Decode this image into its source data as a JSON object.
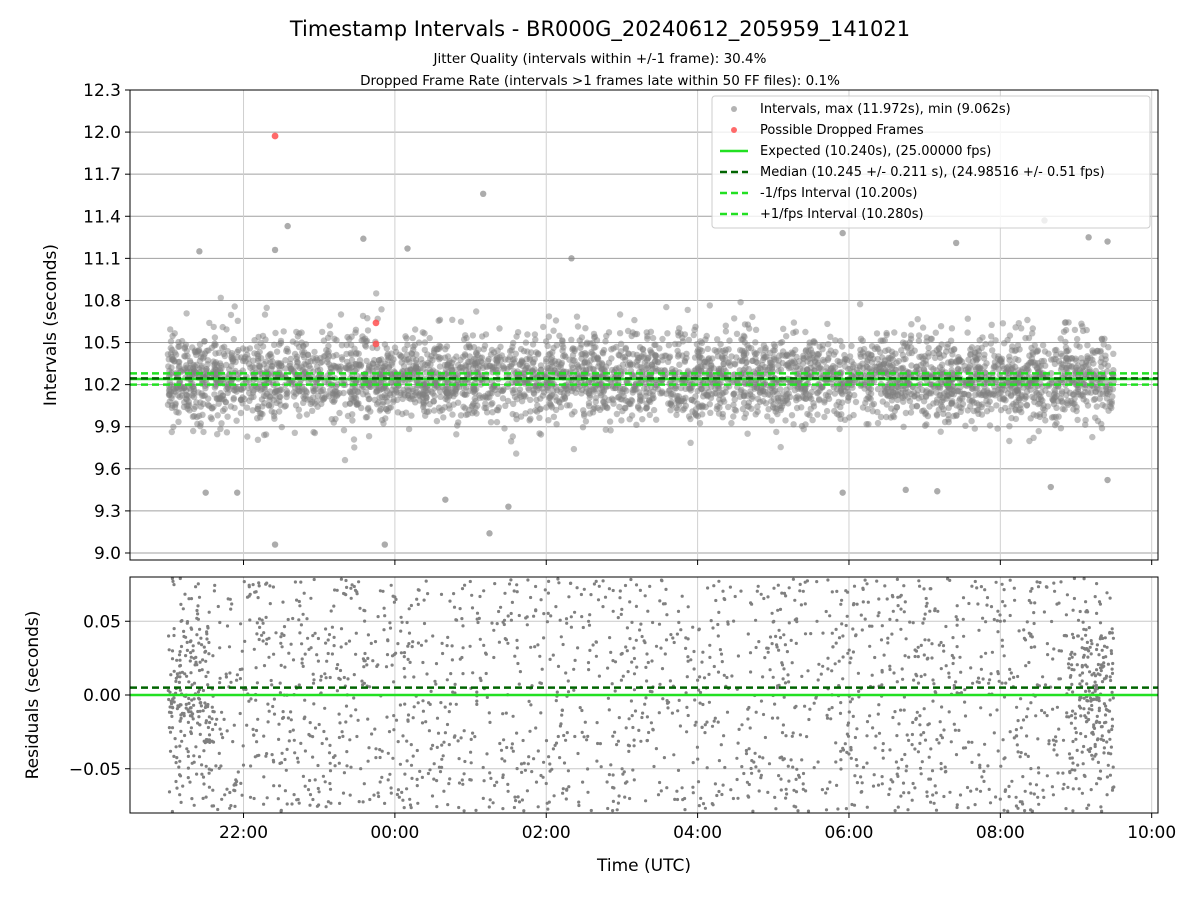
{
  "figure": {
    "title": "Timestamp Intervals - BR000G_20240612_205959_141021",
    "subtitle_1": "Jitter Quality (intervals within +/-1 frame): 30.4%",
    "subtitle_2": "Dropped Frame Rate (intervals >1 frames late within 50 FF files): 0.1%"
  },
  "colors": {
    "points": "#808080",
    "dropped": "#ff5050",
    "expected": "#22e022",
    "median": "#006400",
    "bound": "#22e022",
    "grid": "#b0b0b0"
  },
  "chart_data": [
    {
      "type": "scatter",
      "panel": "intervals",
      "xlabel": "",
      "ylabel": "Intervals (seconds)",
      "ylim": [
        8.95,
        12.3
      ],
      "yticks": [
        "9.0",
        "9.3",
        "9.6",
        "9.9",
        "10.2",
        "10.5",
        "10.8",
        "11.1",
        "11.4",
        "11.7",
        "12.0",
        "12.3"
      ],
      "grid": true,
      "legend_position": "top-right",
      "legend": [
        "Intervals, max (11.972s), min (9.062s)",
        "Possible Dropped Frames",
        "Expected (10.240s), (25.00000 fps)",
        "Median (10.245 +/- 0.211 s), (24.98516 +/- 0.51 fps)",
        "-1/fps Interval (10.200s)",
        "+1/fps Interval (10.280s)"
      ],
      "series": [
        {
          "name": "Intervals, max (11.972s), min (9.062s)",
          "kind": "scatter-cloud",
          "x_range": [
            "21:00",
            "09:30"
          ],
          "count_approx": 4000,
          "center": 10.245,
          "spread": 0.211,
          "min": 9.062,
          "max": 11.972,
          "sample_points": [
            {
              "x": "22:25",
              "y": 9.06
            },
            {
              "x": "23:52",
              "y": 9.06
            },
            {
              "x": "21:30",
              "y": 9.43
            },
            {
              "x": "21:55",
              "y": 9.43
            },
            {
              "x": "01:15",
              "y": 9.14
            },
            {
              "x": "01:30",
              "y": 9.33
            },
            {
              "x": "01:10",
              "y": 11.56
            },
            {
              "x": "22:35",
              "y": 11.33
            },
            {
              "x": "23:35",
              "y": 11.24
            },
            {
              "x": "05:55",
              "y": 11.28
            },
            {
              "x": "07:25",
              "y": 11.21
            },
            {
              "x": "08:35",
              "y": 11.37
            },
            {
              "x": "09:10",
              "y": 11.25
            },
            {
              "x": "09:25",
              "y": 11.22
            },
            {
              "x": "21:25",
              "y": 11.15
            },
            {
              "x": "02:20",
              "y": 11.1
            },
            {
              "x": "06:45",
              "y": 9.45
            },
            {
              "x": "07:10",
              "y": 9.44
            },
            {
              "x": "08:40",
              "y": 9.47
            },
            {
              "x": "09:25",
              "y": 9.52
            },
            {
              "x": "00:40",
              "y": 9.38
            },
            {
              "x": "05:55",
              "y": 9.43
            },
            {
              "x": "22:25",
              "y": 11.16
            },
            {
              "x": "00:10",
              "y": 11.17
            }
          ]
        },
        {
          "name": "Possible Dropped Frames",
          "points": [
            {
              "x": "22:25",
              "y": 11.972
            },
            {
              "x": "23:45",
              "y": 10.64
            },
            {
              "x": "23:45",
              "y": 10.49
            }
          ]
        }
      ],
      "lines": [
        {
          "name": "Expected (10.240s), (25.00000 fps)",
          "y": 10.24,
          "style": "solid"
        },
        {
          "name": "Median (10.245 +/- 0.211 s), (24.98516 +/- 0.51 fps)",
          "y": 10.245,
          "style": "dashed"
        },
        {
          "name": "-1/fps Interval (10.200s)",
          "y": 10.2,
          "style": "dashed"
        },
        {
          "name": "+1/fps Interval (10.280s)",
          "y": 10.28,
          "style": "dashed"
        }
      ]
    },
    {
      "type": "scatter",
      "panel": "residuals",
      "xlabel": "Time (UTC)",
      "ylabel": "Residuals (seconds)",
      "ylim": [
        -0.08,
        0.08
      ],
      "yticks": [
        "−0.05",
        "0.00",
        "0.05"
      ],
      "xlim": [
        "20:30",
        "10:05"
      ],
      "xticks": [
        "22:00",
        "00:00",
        "02:00",
        "04:00",
        "06:00",
        "08:00",
        "10:00"
      ],
      "grid": true,
      "series": [
        {
          "name": "",
          "kind": "scatter-cloud",
          "x_range": [
            "21:00",
            "09:30"
          ],
          "count_approx": 2000,
          "distribution": "roughly uniform between -0.08 and 0.08, denser near ends",
          "sample_points": [
            {
              "x": "21:05",
              "y": 0.045
            },
            {
              "x": "21:10",
              "y": 0.02
            },
            {
              "x": "21:20",
              "y": 0.03
            },
            {
              "x": "21:40",
              "y": 0.06
            },
            {
              "x": "21:50",
              "y": -0.075
            },
            {
              "x": "22:10",
              "y": 0.07
            },
            {
              "x": "23:00",
              "y": -0.02
            },
            {
              "x": "00:30",
              "y": 0.04
            },
            {
              "x": "02:00",
              "y": -0.06
            },
            {
              "x": "04:00",
              "y": 0.01
            },
            {
              "x": "06:00",
              "y": -0.04
            },
            {
              "x": "08:00",
              "y": 0.05
            },
            {
              "x": "09:05",
              "y": 0.02
            },
            {
              "x": "09:20",
              "y": -0.03
            },
            {
              "x": "09:28",
              "y": 0.03
            }
          ]
        }
      ],
      "lines": [
        {
          "name": "expected",
          "y": 0.0,
          "style": "solid"
        },
        {
          "name": "median",
          "y": 0.005,
          "style": "dashed"
        }
      ]
    }
  ]
}
